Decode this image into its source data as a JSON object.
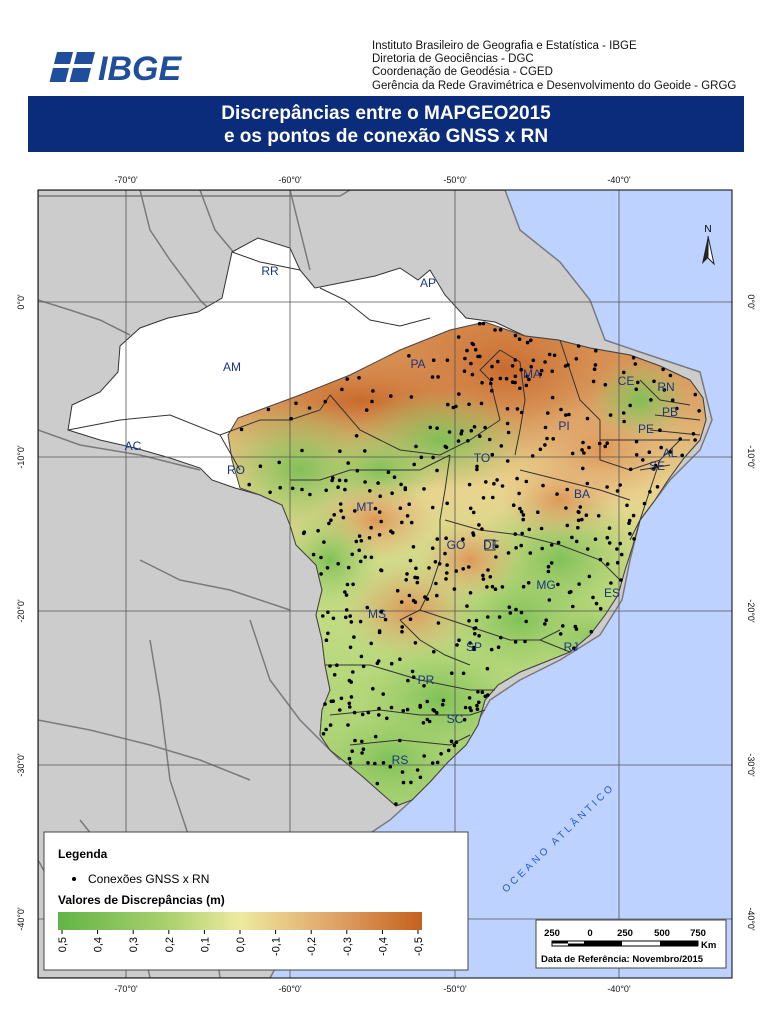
{
  "header": {
    "logo_text": "IBGE",
    "institution_lines": [
      "Instituto Brasileiro de Geografia e Estatística - IBGE",
      "Diretoria de Geociências - DGC",
      "Coordenação de Geodésia - CGED",
      "Gerência da Rede Gravimétrica e Desenvolvimento do Geoide - GRGG"
    ],
    "title_line1": "Discrepâncias entre o MAPGEO2015",
    "title_line2": "e os pontos de conexão GNSS x RN"
  },
  "map": {
    "lon_ticks": [
      "-70°0'",
      "-60°0'",
      "-50°0'",
      "-40°0'"
    ],
    "lat_ticks": [
      "0°0'",
      "-10°0'",
      "-20°0'",
      "-30°0'",
      "-40°0'"
    ],
    "north_label": "N",
    "ocean_label": "OCEANO ATLÂNTICO",
    "states": [
      {
        "abbr": "RR"
      },
      {
        "abbr": "AP"
      },
      {
        "abbr": "AM"
      },
      {
        "abbr": "PA"
      },
      {
        "abbr": "MA"
      },
      {
        "abbr": "CE"
      },
      {
        "abbr": "RN"
      },
      {
        "abbr": "PB"
      },
      {
        "abbr": "PE"
      },
      {
        "abbr": "PI"
      },
      {
        "abbr": "AL"
      },
      {
        "abbr": "SE"
      },
      {
        "abbr": "AC"
      },
      {
        "abbr": "RO"
      },
      {
        "abbr": "TO"
      },
      {
        "abbr": "MT"
      },
      {
        "abbr": "BA"
      },
      {
        "abbr": "GO"
      },
      {
        "abbr": "DF"
      },
      {
        "abbr": "MG"
      },
      {
        "abbr": "ES"
      },
      {
        "abbr": "MS"
      },
      {
        "abbr": "SP"
      },
      {
        "abbr": "RJ"
      },
      {
        "abbr": "PR"
      },
      {
        "abbr": "SC"
      },
      {
        "abbr": "RS"
      }
    ]
  },
  "legend": {
    "title": "Legenda",
    "points_label": "Conexões GNSS x RN",
    "gradient_title": "Valores de Discrepâncias (m)",
    "gradient_labels": [
      "0,5",
      "0,4",
      "0,3",
      "0,2",
      "0,1",
      "0,0",
      "-0,1",
      "-0,2",
      "-0,3",
      "-0,4",
      "-0,5"
    ],
    "colors": {
      "positive": "#62b446",
      "zero": "#eeeaa0",
      "negative": "#c4601d"
    }
  },
  "scale": {
    "labels": [
      "250",
      "0",
      "250",
      "500",
      "750"
    ],
    "unit": "Km",
    "reference_date": "Data de Referência: Novembro/2015"
  }
}
